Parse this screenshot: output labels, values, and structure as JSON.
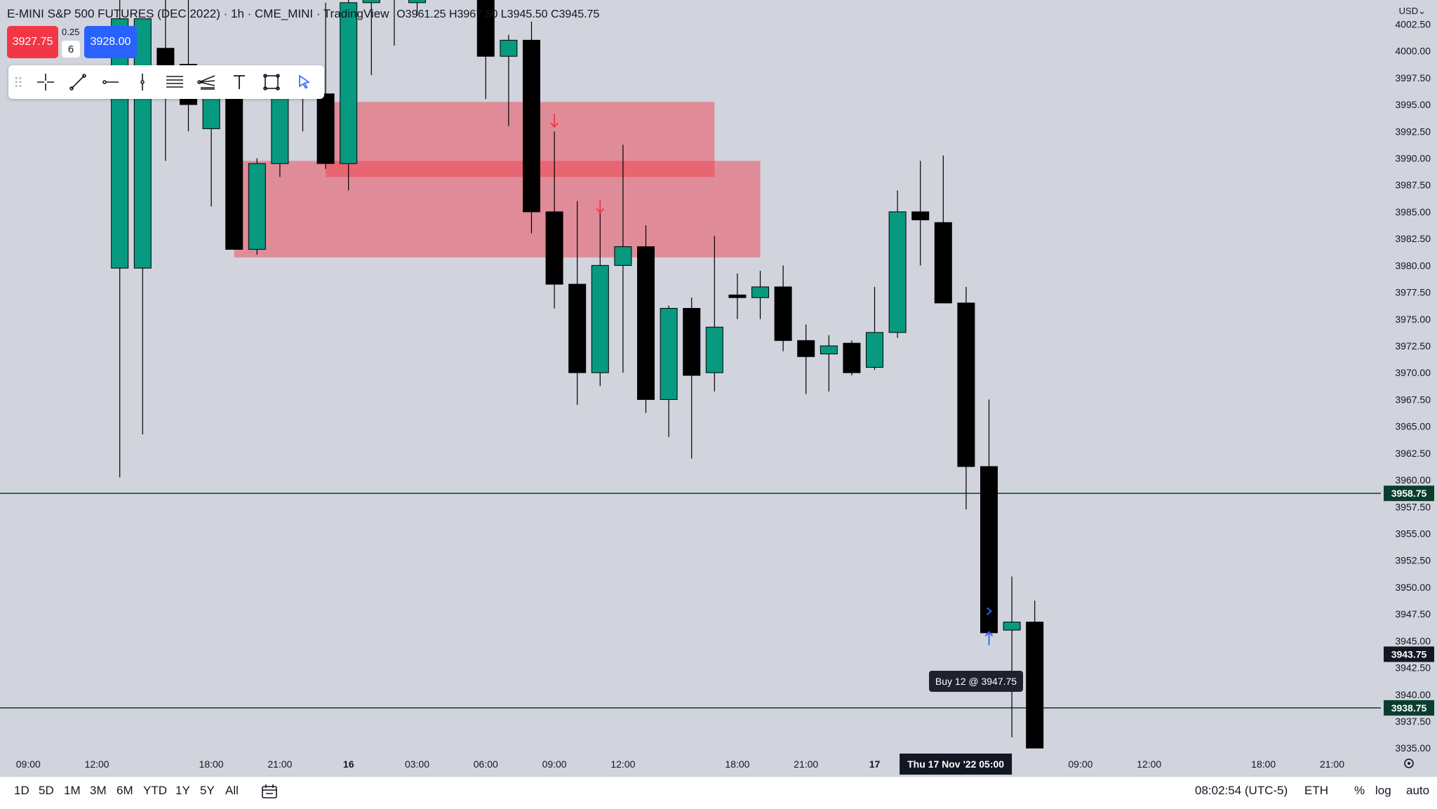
{
  "header": {
    "title": "E-MINI S&P 500 FUTURES (DEC 2022) · 1h · CME_MINI · TradingView",
    "ohlc": "O3961.25 H3967.50 L3945.50 C3945.75"
  },
  "trade_panel": {
    "sell_price": "3927.75",
    "buy_price": "3928.00",
    "tick_size": "0.25",
    "quantity": "6"
  },
  "currency": "USD",
  "toolbar": {
    "icons": [
      "grip-icon",
      "crosshair-icon",
      "trend-line-icon",
      "horizontal-ray-icon",
      "vertical-line-icon",
      "fib-retracement-icon",
      "pitchfork-icon",
      "text-icon",
      "rectangle-icon",
      "cursor-icon"
    ]
  },
  "order_tooltip": "Buy 12 @ 3947.75",
  "bottom_bar": {
    "ranges": [
      "1D",
      "5D",
      "1M",
      "3M",
      "6M",
      "YTD",
      "1Y",
      "5Y",
      "All"
    ],
    "clock": "08:02:54 (UTC-5)",
    "session": "ETH",
    "percent": "%",
    "log": "log",
    "auto": "auto"
  },
  "colors": {
    "background": "#d1d4dc",
    "up": "#089981",
    "down": "#000000",
    "zone": "#f23645",
    "sell": "#f23645",
    "buy": "#2962ff",
    "price_line": "#0b3d2e"
  },
  "chart_data": {
    "type": "candlestick",
    "title": "E-MINI S&P 500 FUTURES (DEC 2022) · 1h · CME_MINI · TradingView",
    "ylim": [
      3934.75,
      4004.75
    ],
    "y_ticks": [
      "4002.50",
      "4000.00",
      "3997.50",
      "3995.00",
      "3992.50",
      "3990.00",
      "3987.50",
      "3985.00",
      "3982.50",
      "3980.00",
      "3977.50",
      "3975.00",
      "3972.50",
      "3970.00",
      "3967.50",
      "3965.00",
      "3962.50",
      "3960.00",
      "3957.50",
      "3955.00",
      "3952.50",
      "3950.00",
      "3947.50",
      "3945.00",
      "3942.50",
      "3940.00",
      "3937.50",
      "3935.00"
    ],
    "x_ticks": [
      {
        "index": 0.5,
        "label": "09:00"
      },
      {
        "index": 3.5,
        "label": "12:00"
      },
      {
        "index": 8.5,
        "label": "18:00"
      },
      {
        "index": 11.5,
        "label": "21:00"
      },
      {
        "index": 14.5,
        "label": "16"
      },
      {
        "index": 17.5,
        "label": "03:00"
      },
      {
        "index": 20.5,
        "label": "06:00"
      },
      {
        "index": 23.5,
        "label": "09:00"
      },
      {
        "index": 26.5,
        "label": "12:00"
      },
      {
        "index": 31.5,
        "label": "18:00"
      },
      {
        "index": 34.5,
        "label": "21:00"
      },
      {
        "index": 37.5,
        "label": "17"
      },
      {
        "index": 46.5,
        "label": "09:00"
      },
      {
        "index": 49.5,
        "label": "12:00"
      },
      {
        "index": 54.5,
        "label": "18:00"
      },
      {
        "index": 57.5,
        "label": "21:00"
      }
    ],
    "crosshair_label": "Thu 17 Nov '22   05:00",
    "crosshair_index": 43.5,
    "candles": [
      {
        "i": 4.5,
        "o": 3979.75,
        "h": 4005,
        "l": 3960.25,
        "c": 4003
      },
      {
        "i": 5.5,
        "o": 3979.75,
        "h": 4003,
        "l": 3964.25,
        "c": 4003
      },
      {
        "i": 6.5,
        "o": 4000.25,
        "h": 4005,
        "l": 3989.75,
        "c": 3998.25
      },
      {
        "i": 7.5,
        "o": 3998.75,
        "h": 4005,
        "l": 3992.5,
        "c": 3995.0
      },
      {
        "i": 8.5,
        "o": 3992.75,
        "h": 3996.25,
        "l": 3985.5,
        "c": 3996.5
      },
      {
        "i": 9.5,
        "o": 3996.25,
        "h": 3997.5,
        "l": 3981.5,
        "c": 3981.5
      },
      {
        "i": 10.5,
        "o": 3981.5,
        "h": 3990.0,
        "l": 3981.0,
        "c": 3989.5
      },
      {
        "i": 11.5,
        "o": 3989.5,
        "h": 3998.25,
        "l": 3988.25,
        "c": 3996.25
      },
      {
        "i": 12.5,
        "o": 3996.25,
        "h": 3997.75,
        "l": 3992.5,
        "c": 3996.0
      },
      {
        "i": 13.5,
        "o": 3996.0,
        "h": 4004.5,
        "l": 3989.0,
        "c": 3989.5
      },
      {
        "i": 14.5,
        "o": 3989.5,
        "h": 4005,
        "l": 3987.0,
        "c": 4004.5
      },
      {
        "i": 15.5,
        "o": 4004.5,
        "h": 4005,
        "l": 3997.75,
        "c": 4005
      },
      {
        "i": 16.5,
        "o": 4005,
        "h": 4005,
        "l": 4000.5,
        "c": 4005
      },
      {
        "i": 17.5,
        "o": 4004.5,
        "h": 4005,
        "l": 4003.25,
        "c": 4005
      },
      {
        "i": 20.5,
        "o": 4005,
        "h": 4005,
        "l": 3995.5,
        "c": 3999.5
      },
      {
        "i": 21.5,
        "o": 3999.5,
        "h": 4001.5,
        "l": 3993.0,
        "c": 4001.0
      },
      {
        "i": 22.5,
        "o": 4001.0,
        "h": 4002.75,
        "l": 3983.0,
        "c": 3985.0
      },
      {
        "i": 23.5,
        "o": 3985.0,
        "h": 3992.5,
        "l": 3976.0,
        "c": 3978.25
      },
      {
        "i": 24.5,
        "o": 3978.25,
        "h": 3986.0,
        "l": 3967.0,
        "c": 3970.0
      },
      {
        "i": 25.5,
        "o": 3970.0,
        "h": 3985.25,
        "l": 3968.75,
        "c": 3980.0
      },
      {
        "i": 26.5,
        "o": 3980.0,
        "h": 3991.25,
        "l": 3970.0,
        "c": 3981.75
      },
      {
        "i": 27.5,
        "o": 3981.75,
        "h": 3983.75,
        "l": 3966.25,
        "c": 3967.5
      },
      {
        "i": 28.5,
        "o": 3967.5,
        "h": 3976.25,
        "l": 3964.0,
        "c": 3976.0
      },
      {
        "i": 29.5,
        "o": 3976.0,
        "h": 3977.0,
        "l": 3962.0,
        "c": 3969.75
      },
      {
        "i": 30.5,
        "o": 3970.0,
        "h": 3982.75,
        "l": 3968.25,
        "c": 3974.25
      },
      {
        "i": 31.5,
        "o": 3977.25,
        "h": 3979.25,
        "l": 3975.0,
        "c": 3977.0
      },
      {
        "i": 32.5,
        "o": 3977.0,
        "h": 3979.5,
        "l": 3975.0,
        "c": 3978.0
      },
      {
        "i": 33.5,
        "o": 3978.0,
        "h": 3980.0,
        "l": 3972.0,
        "c": 3973.0
      },
      {
        "i": 34.5,
        "o": 3973.0,
        "h": 3974.5,
        "l": 3968.0,
        "c": 3971.5
      },
      {
        "i": 35.5,
        "o": 3971.75,
        "h": 3973.5,
        "l": 3968.25,
        "c": 3972.5
      },
      {
        "i": 36.5,
        "o": 3972.75,
        "h": 3973.0,
        "l": 3969.75,
        "c": 3970.0
      },
      {
        "i": 37.5,
        "o": 3970.5,
        "h": 3978.0,
        "l": 3970.25,
        "c": 3973.75
      },
      {
        "i": 38.5,
        "o": 3973.75,
        "h": 3987.0,
        "l": 3973.25,
        "c": 3985.0
      },
      {
        "i": 39.5,
        "o": 3985.0,
        "h": 3989.75,
        "l": 3980.0,
        "c": 3984.25
      },
      {
        "i": 40.5,
        "o": 3984.0,
        "h": 3990.25,
        "l": 3977.0,
        "c": 3976.5
      },
      {
        "i": 41.5,
        "o": 3976.5,
        "h": 3978.0,
        "l": 3957.25,
        "c": 3961.25
      },
      {
        "i": 42.5,
        "o": 3961.25,
        "h": 3967.5,
        "l": 3945.5,
        "c": 3945.75
      },
      {
        "i": 43.5,
        "o": 3946.0,
        "h": 3951.0,
        "l": 3936.0,
        "c": 3946.75
      },
      {
        "i": 44.5,
        "o": 3946.75,
        "h": 3948.75,
        "l": 3935.0,
        "c": 3935.0
      }
    ],
    "zones": [
      {
        "start": 13.5,
        "end": 30.5,
        "top": 3995.25,
        "bottom": 3988.25
      },
      {
        "start": 9.5,
        "end": 32.5,
        "top": 3989.75,
        "bottom": 3980.75
      }
    ],
    "price_lines": [
      {
        "value": 3958.75,
        "label": "3958.75"
      },
      {
        "value": 3938.75,
        "label": "3938.75"
      }
    ],
    "marker_labels": [
      {
        "value": 3943.75,
        "label": "3943.75"
      }
    ],
    "sell_arrows": [
      {
        "i": 23.5,
        "value": 3993.5
      },
      {
        "i": 25.5,
        "value": 3985.5
      }
    ],
    "buy_arrow": {
      "i": 42.5,
      "value": 3945.25
    },
    "execution_marker": {
      "i": 42.5,
      "value": 3947.75
    }
  }
}
